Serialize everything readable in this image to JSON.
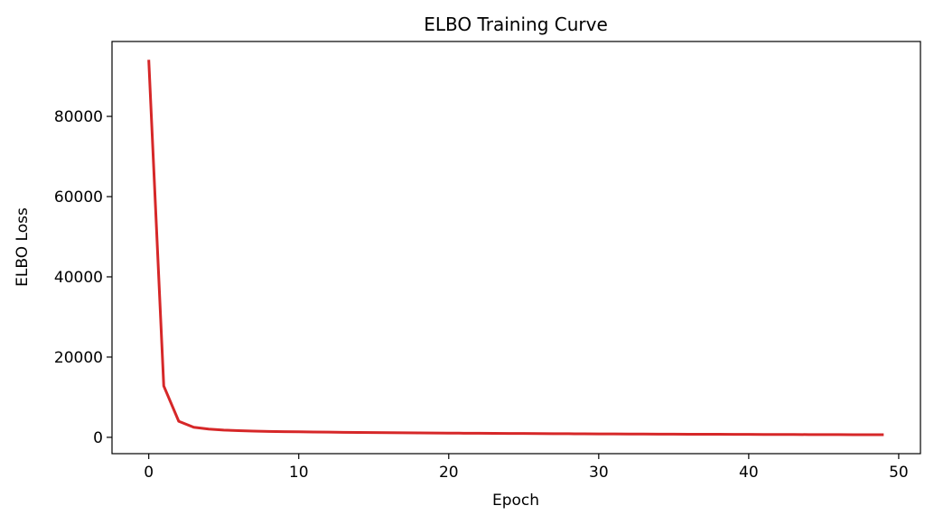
{
  "chart_data": {
    "type": "line",
    "title": "ELBO Training Curve",
    "x_label": "Epoch",
    "y_label": "ELBO Loss",
    "x": [
      0,
      1,
      2,
      3,
      4,
      5,
      6,
      7,
      8,
      9,
      10,
      11,
      12,
      13,
      14,
      15,
      16,
      17,
      18,
      19,
      20,
      21,
      22,
      23,
      24,
      25,
      26,
      27,
      28,
      29,
      30,
      31,
      32,
      33,
      34,
      35,
      36,
      37,
      38,
      39,
      40,
      41,
      42,
      43,
      44,
      45,
      46,
      47,
      48,
      49
    ],
    "series": [
      {
        "color": "#d62728",
        "values": [
          94100,
          12800,
          4000,
          2500,
          2050,
          1800,
          1650,
          1550,
          1480,
          1420,
          1370,
          1330,
          1290,
          1250,
          1220,
          1190,
          1160,
          1130,
          1100,
          1080,
          1050,
          1030,
          1010,
          990,
          970,
          950,
          930,
          910,
          890,
          870,
          860,
          840,
          830,
          810,
          800,
          790,
          770,
          760,
          750,
          740,
          730,
          720,
          710,
          700,
          690,
          680,
          670,
          660,
          650,
          640
        ]
      }
    ],
    "xlim": [
      -2.45,
      51.45
    ],
    "xticks": [
      0,
      10,
      20,
      30,
      40,
      50
    ],
    "ylim": [
      -4070,
      98670
    ],
    "yticks": [
      0,
      20000,
      40000,
      60000,
      80000
    ],
    "grid": false
  }
}
